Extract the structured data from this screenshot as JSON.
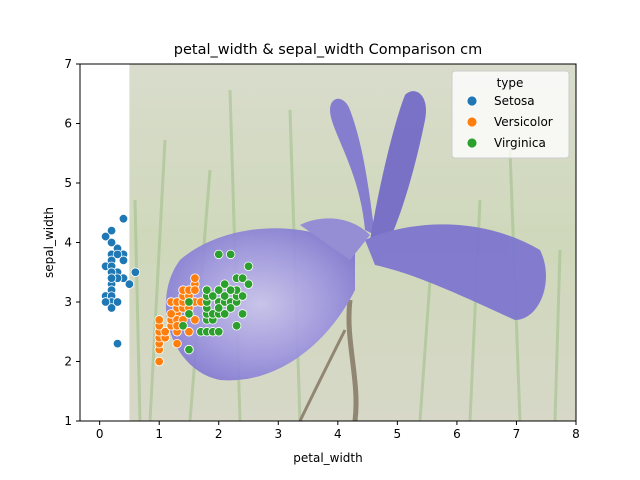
{
  "chart_data": {
    "type": "scatter",
    "title": "petal_width & sepal_width Comparison cm",
    "xlabel": "petal_width",
    "ylabel": "sepal_width",
    "xlim": [
      -0.33,
      8
    ],
    "ylim": [
      1,
      7
    ],
    "xticks": [
      "0",
      "1",
      "2",
      "3",
      "4",
      "5",
      "6",
      "7",
      "8"
    ],
    "yticks": [
      "1",
      "2",
      "3",
      "4",
      "5",
      "6",
      "7"
    ],
    "grid": false,
    "background_image": {
      "description_icon": "iris-flower-photo",
      "x_range": [
        0.5,
        8
      ],
      "y_range": [
        1,
        7
      ]
    },
    "legend": {
      "title": "type",
      "placement": "top-right"
    },
    "series": [
      {
        "name": "Setosa",
        "color": "#1f77b4",
        "points": [
          [
            0.1,
            4.1
          ],
          [
            0.2,
            4.2
          ],
          [
            0.4,
            4.4
          ],
          [
            0.1,
            3.6
          ],
          [
            0.2,
            4.0
          ],
          [
            0.3,
            3.9
          ],
          [
            0.2,
            3.8
          ],
          [
            0.4,
            3.8
          ],
          [
            0.3,
            3.8
          ],
          [
            0.2,
            3.7
          ],
          [
            0.4,
            3.7
          ],
          [
            0.2,
            3.6
          ],
          [
            0.3,
            3.5
          ],
          [
            0.2,
            3.5
          ],
          [
            0.6,
            3.5
          ],
          [
            0.2,
            3.4
          ],
          [
            0.4,
            3.4
          ],
          [
            0.3,
            3.4
          ],
          [
            0.5,
            3.3
          ],
          [
            0.1,
            3.1
          ],
          [
            0.2,
            3.3
          ],
          [
            0.2,
            3.2
          ],
          [
            0.1,
            3.0
          ],
          [
            0.2,
            3.1
          ],
          [
            0.2,
            3.0
          ],
          [
            0.3,
            3.0
          ],
          [
            0.2,
            2.9
          ],
          [
            0.3,
            2.3
          ],
          [
            0.2,
            3.4
          ],
          [
            0.1,
            3.0
          ]
        ]
      },
      {
        "name": "Versicolor",
        "color": "#ff7f0e",
        "points": [
          [
            1.0,
            2.0
          ],
          [
            1.0,
            2.2
          ],
          [
            1.0,
            2.3
          ],
          [
            1.0,
            2.4
          ],
          [
            1.0,
            2.5
          ],
          [
            1.0,
            2.6
          ],
          [
            1.0,
            2.7
          ],
          [
            1.1,
            2.4
          ],
          [
            1.1,
            2.5
          ],
          [
            1.2,
            2.6
          ],
          [
            1.2,
            2.7
          ],
          [
            1.2,
            3.0
          ],
          [
            1.3,
            2.3
          ],
          [
            1.3,
            2.8
          ],
          [
            1.3,
            2.9
          ],
          [
            1.3,
            3.0
          ],
          [
            1.3,
            2.5
          ],
          [
            1.3,
            2.7
          ],
          [
            1.4,
            2.6
          ],
          [
            1.4,
            2.9
          ],
          [
            1.4,
            3.0
          ],
          [
            1.4,
            3.1
          ],
          [
            1.4,
            3.2
          ],
          [
            1.5,
            2.2
          ],
          [
            1.5,
            2.5
          ],
          [
            1.5,
            2.8
          ],
          [
            1.5,
            3.0
          ],
          [
            1.5,
            3.1
          ],
          [
            1.5,
            3.2
          ],
          [
            1.6,
            2.7
          ],
          [
            1.6,
            3.0
          ],
          [
            1.6,
            3.3
          ],
          [
            1.6,
            3.4
          ],
          [
            1.7,
            3.0
          ],
          [
            1.8,
            3.2
          ],
          [
            1.5,
            2.9
          ],
          [
            1.3,
            2.6
          ],
          [
            1.4,
            2.7
          ],
          [
            1.2,
            2.8
          ],
          [
            1.6,
            3.2
          ]
        ]
      },
      {
        "name": "Virginica",
        "color": "#2ca02c",
        "points": [
          [
            1.4,
            2.6
          ],
          [
            1.5,
            2.2
          ],
          [
            1.5,
            2.8
          ],
          [
            1.5,
            3.0
          ],
          [
            1.7,
            2.5
          ],
          [
            1.8,
            2.5
          ],
          [
            1.8,
            2.7
          ],
          [
            1.8,
            2.8
          ],
          [
            1.8,
            2.9
          ],
          [
            1.8,
            3.0
          ],
          [
            1.8,
            3.1
          ],
          [
            1.8,
            3.2
          ],
          [
            1.9,
            2.5
          ],
          [
            1.9,
            2.7
          ],
          [
            1.9,
            2.8
          ],
          [
            2.0,
            2.5
          ],
          [
            2.0,
            2.8
          ],
          [
            2.0,
            3.0
          ],
          [
            2.0,
            3.2
          ],
          [
            2.0,
            3.8
          ],
          [
            2.1,
            2.8
          ],
          [
            2.1,
            3.0
          ],
          [
            2.1,
            3.1
          ],
          [
            2.2,
            3.8
          ],
          [
            2.2,
            3.0
          ],
          [
            2.3,
            2.6
          ],
          [
            2.3,
            3.0
          ],
          [
            2.3,
            3.1
          ],
          [
            2.3,
            3.2
          ],
          [
            2.3,
            3.4
          ],
          [
            2.4,
            2.8
          ],
          [
            2.4,
            3.1
          ],
          [
            2.4,
            3.4
          ],
          [
            2.5,
            3.3
          ],
          [
            2.5,
            3.6
          ],
          [
            2.1,
            3.3
          ],
          [
            2.2,
            3.2
          ],
          [
            1.9,
            3.1
          ],
          [
            2.0,
            2.9
          ],
          [
            2.2,
            2.9
          ]
        ]
      }
    ]
  }
}
